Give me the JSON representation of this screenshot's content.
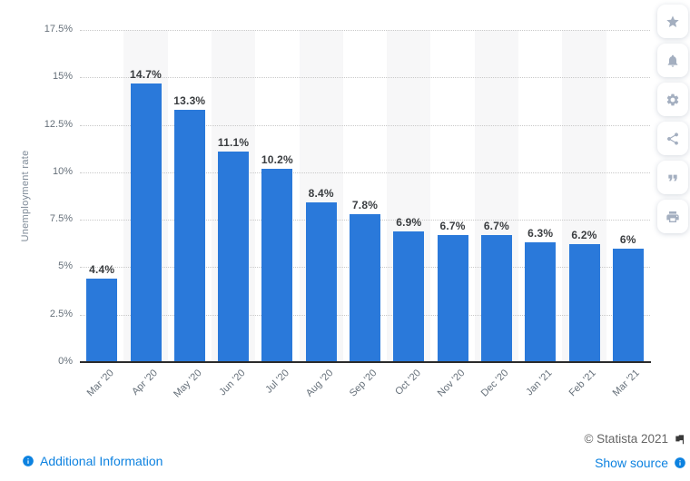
{
  "chart_data": {
    "type": "bar",
    "title": "",
    "ylabel": "Unemployment rate",
    "xlabel": "",
    "categories": [
      "Mar '20",
      "Apr '20",
      "May '20",
      "Jun '20",
      "Jul '20",
      "Aug '20",
      "Sep '20",
      "Oct '20",
      "Nov '20",
      "Dec '20",
      "Jan '21",
      "Feb '21",
      "Mar '21"
    ],
    "values": [
      4.4,
      14.7,
      13.3,
      11.1,
      10.2,
      8.4,
      7.8,
      6.9,
      6.7,
      6.7,
      6.3,
      6.2,
      6
    ],
    "value_labels": [
      "4.4%",
      "14.7%",
      "13.3%",
      "11.1%",
      "10.2%",
      "8.4%",
      "7.8%",
      "6.9%",
      "6.7%",
      "6.7%",
      "6.3%",
      "6.2%",
      "6%"
    ],
    "y_tick_values": [
      0,
      2.5,
      5,
      7.5,
      10,
      12.5,
      15,
      17.5
    ],
    "y_tick_labels": [
      "0%",
      "2.5%",
      "5%",
      "7.5%",
      "10%",
      "12.5%",
      "15%",
      "17.5%"
    ],
    "ylim": [
      0,
      17.5
    ],
    "grid": "horizontal-dotted",
    "legend": "none",
    "bar_color": "#2a79da",
    "band_color": "#f7f7f8"
  },
  "toolbar": {
    "buttons": [
      {
        "name": "favorite-button",
        "icon": "star-icon"
      },
      {
        "name": "notifications-button",
        "icon": "bell-icon"
      },
      {
        "name": "settings-button",
        "icon": "gear-icon"
      },
      {
        "name": "share-button",
        "icon": "share-icon"
      },
      {
        "name": "cite-button",
        "icon": "quote-icon"
      },
      {
        "name": "print-button",
        "icon": "printer-icon"
      }
    ]
  },
  "footer": {
    "additional_information": "Additional Information",
    "copyright": "© Statista 2021",
    "show_source": "Show source"
  },
  "colors": {
    "bar": "#2a79da",
    "link": "#0d82e0",
    "copyright_text": "#666666",
    "toolbar_icon": "#a4afc0",
    "axis_line": "#2b2b2b",
    "gridline": "#c9c9c9"
  }
}
